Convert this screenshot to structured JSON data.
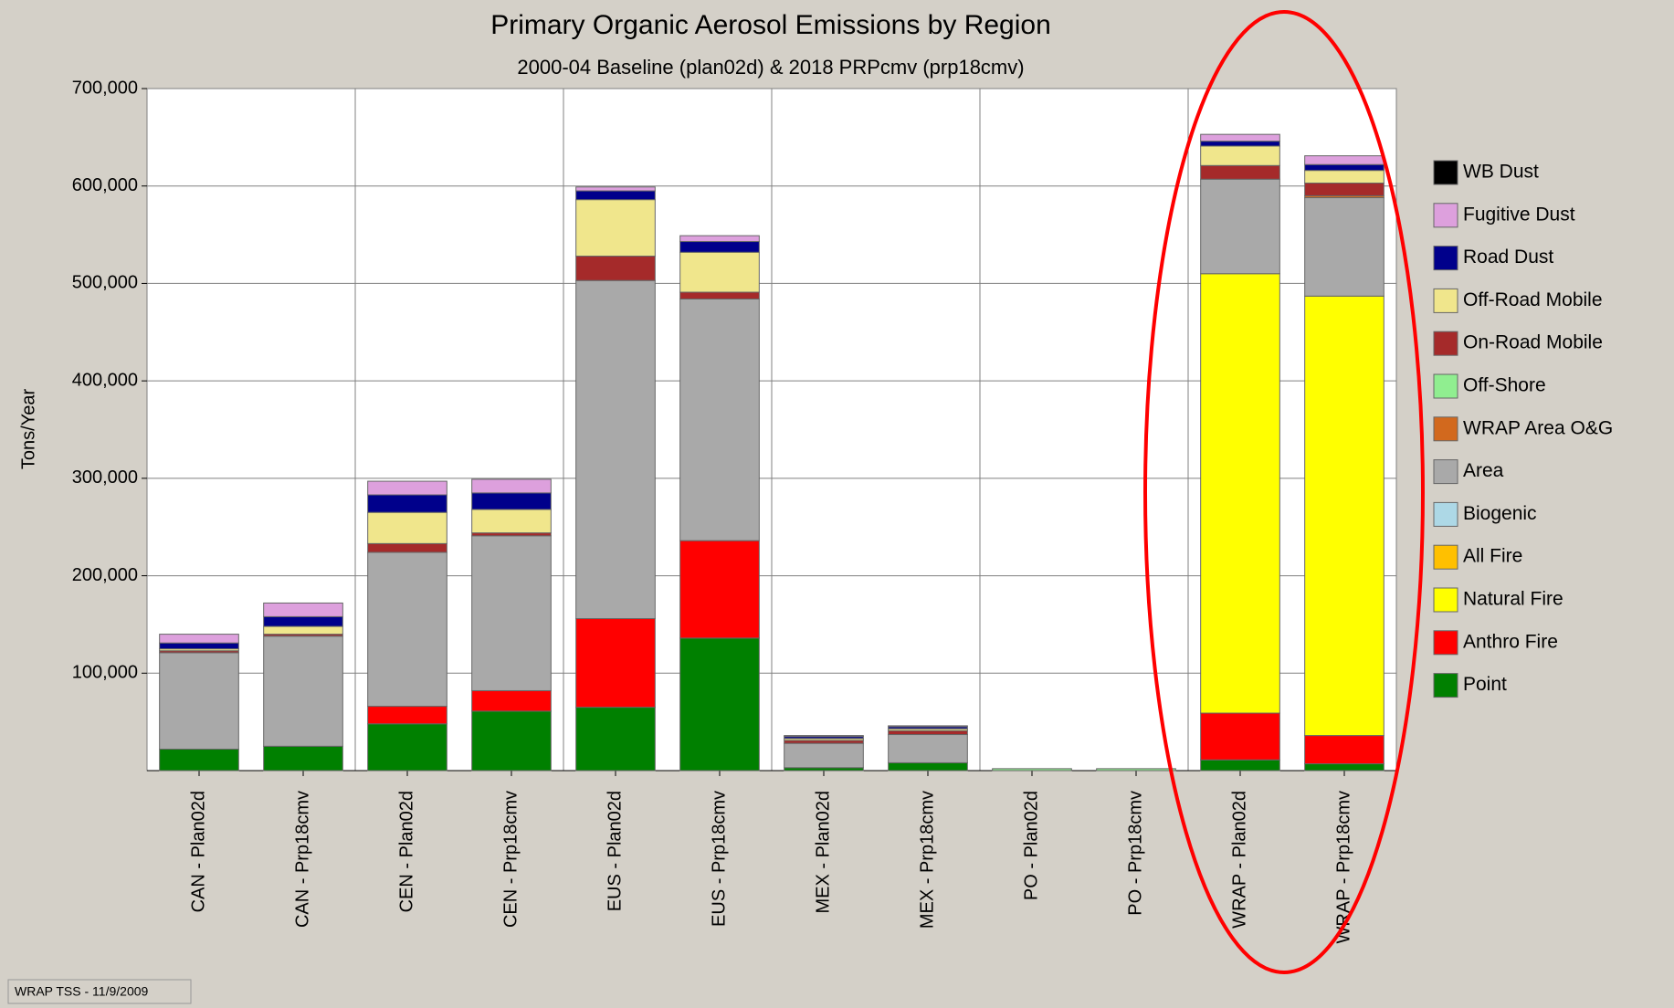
{
  "chart_data": {
    "type": "stacked-bar",
    "title": "Primary Organic Aerosol Emissions by Region",
    "subtitle": "2000-04 Baseline (plan02d) & 2018 PRPcmv (prp18cmv)",
    "y_label": "Tons/Year",
    "footer": "WRAP TSS - 11/9/2009",
    "categories": [
      "CAN - Plan02d",
      "CAN - Prp18cmv",
      "CEN - Plan02d",
      "CEN - Prp18cmv",
      "EUS - Plan02d",
      "EUS - Prp18cmv",
      "MEX - Plan02d",
      "MEX - Prp18cmv",
      "PO - Plan02d",
      "PO - Prp18cmv",
      "WRAP - Plan02d",
      "WRAP - Prp18cmv"
    ],
    "ylim": [
      0,
      700000
    ],
    "yticks": [
      {
        "value": 100000,
        "label": "100,000"
      },
      {
        "value": 200000,
        "label": "200,000"
      },
      {
        "value": 300000,
        "label": "300,000"
      },
      {
        "value": 400000,
        "label": "400,000"
      },
      {
        "value": 500000,
        "label": "500,000"
      },
      {
        "value": 600000,
        "label": "600,000"
      },
      {
        "value": 700000,
        "label": "700,000"
      }
    ],
    "grid": true,
    "legend": "right",
    "series": [
      {
        "name": "Point",
        "color": "#008000",
        "values": [
          22000,
          25000,
          48000,
          61000,
          65000,
          136000,
          3000,
          8000,
          0,
          0,
          11000,
          7000
        ]
      },
      {
        "name": "Anthro Fire",
        "color": "#ff0000",
        "values": [
          0,
          0,
          18000,
          21000,
          91000,
          100000,
          0,
          0,
          0,
          0,
          48000,
          29000
        ]
      },
      {
        "name": "Natural Fire",
        "color": "#ffff00",
        "values": [
          0,
          0,
          0,
          0,
          0,
          0,
          0,
          0,
          0,
          0,
          451000,
          451000
        ]
      },
      {
        "name": "All Fire",
        "color": "#ffc000",
        "values": [
          0,
          0,
          0,
          0,
          0,
          0,
          0,
          0,
          0,
          0,
          0,
          0
        ]
      },
      {
        "name": "Biogenic",
        "color": "#add8e6",
        "values": [
          0,
          0,
          0,
          0,
          0,
          0,
          0,
          0,
          0,
          0,
          0,
          0
        ]
      },
      {
        "name": "Area",
        "color": "#a9a9a9",
        "values": [
          99000,
          113000,
          158000,
          159000,
          347000,
          248000,
          25000,
          29000,
          0,
          0,
          97000,
          101000
        ]
      },
      {
        "name": "WRAP Area O&G",
        "color": "#d2691e",
        "values": [
          0,
          0,
          0,
          0,
          0,
          0,
          0,
          0,
          0,
          0,
          0,
          2000
        ]
      },
      {
        "name": "Off-Shore",
        "color": "#90ee90",
        "values": [
          0,
          0,
          0,
          0,
          0,
          0,
          0,
          0,
          2000,
          2000,
          0,
          0
        ]
      },
      {
        "name": "On-Road Mobile",
        "color": "#a52a2a",
        "values": [
          2000,
          2000,
          9000,
          3000,
          25000,
          7000,
          3000,
          4000,
          0,
          0,
          14000,
          13000
        ]
      },
      {
        "name": "Off-Road Mobile",
        "color": "#f0e68c",
        "values": [
          2000,
          8000,
          32000,
          24000,
          58000,
          41000,
          2000,
          2000,
          0,
          0,
          20000,
          13000
        ]
      },
      {
        "name": "Road Dust",
        "color": "#00008b",
        "values": [
          6000,
          10000,
          18000,
          17000,
          9000,
          11000,
          2000,
          2000,
          0,
          0,
          5000,
          6000
        ]
      },
      {
        "name": "Fugitive Dust",
        "color": "#dda0dd",
        "values": [
          9000,
          14000,
          14000,
          14000,
          4000,
          6000,
          1000,
          1000,
          0,
          0,
          7000,
          9000
        ]
      },
      {
        "name": "WB Dust",
        "color": "#000000",
        "values": [
          0,
          0,
          0,
          0,
          0,
          0,
          0,
          0,
          0,
          0,
          0,
          0
        ]
      }
    ]
  }
}
